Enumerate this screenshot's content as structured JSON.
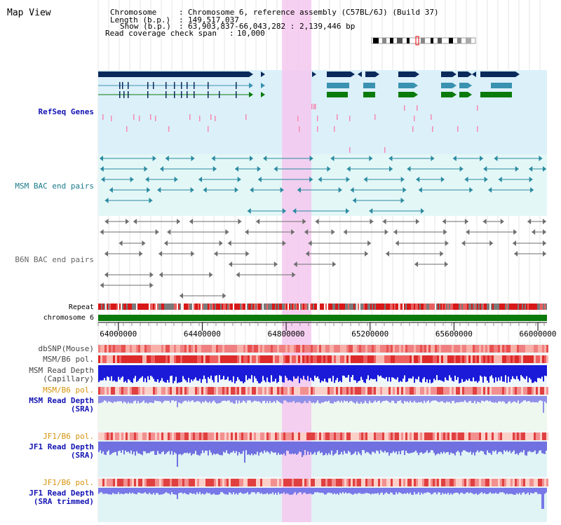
{
  "title": "Map View",
  "info": {
    "chromosome_key": "Chromosome",
    "chromosome_val": "Chromosome 6, reference assembly (C57BL/6J) (Build 37)",
    "length_key": "Length (b.p.)",
    "length_val": "149,517,037",
    "show_key": "Show (b.p.)",
    "show_val": "63,903,837-66,043,282 : 2,139,446 bp",
    "coverage_key": "Read coverage check span",
    "coverage_val": "10,000"
  },
  "ruler": {
    "start": 63903837,
    "end": 66043282,
    "ticks": [
      "64000000",
      "64400000",
      "64800000",
      "65200000",
      "65600000",
      "66000000"
    ]
  },
  "tracks": {
    "refseq": "RefSeq Genes",
    "msm_bac": "MSM BAC end pairs",
    "b6n_bac": "B6N BAC end pairs",
    "repeat": "Repeat",
    "chromosome": "chromosome 6",
    "dbsnp": "dbSNP(Mouse)",
    "msm_b6_pol_1": "MSM/B6 pol.",
    "msm_depth_cap_1": "MSM Read Depth",
    "msm_depth_cap_2": "(Capillary)",
    "msm_b6_pol_2": "MSM/B6 pol.",
    "msm_depth_sra_1": "MSM Read Depth",
    "msm_depth_sra_2": "(SRA)",
    "jf1_b6_pol_1": "JF1/B6 pol.",
    "jf1_depth_sra_1": "JF1 Read Depth",
    "jf1_depth_sra_2": "(SRA)",
    "jf1_b6_pol_2": "JF1/B6 pol.",
    "jf1_depth_trim_1": "JF1 Read Depth",
    "jf1_depth_trim_2": "(SRA trimmed)"
  },
  "highlight": {
    "start": 64780000,
    "end": 64920000
  },
  "colors": {
    "gene_dark": "#0a2a5c",
    "gene_teal": "#3a92b0",
    "gene_green": "#0a7a0a",
    "label_blue": "#1414b4",
    "label_orange": "#d4930a",
    "label_teal": "#1a7a8a",
    "label_gray": "#666666",
    "highlight": "#f5c8ee"
  }
}
